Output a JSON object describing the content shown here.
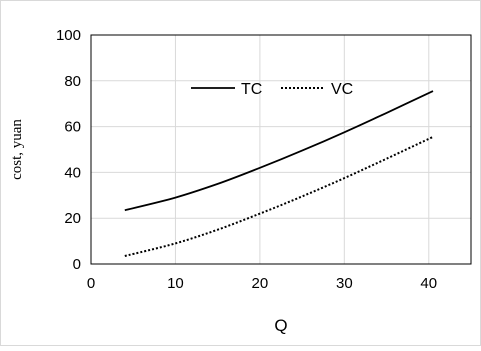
{
  "chart_data": {
    "type": "line",
    "title": "",
    "xlabel": "Q",
    "ylabel": "cost, yuan",
    "xlim": [
      0,
      45
    ],
    "ylim": [
      0,
      100
    ],
    "xticks": [
      0,
      10,
      20,
      30,
      40
    ],
    "yticks": [
      0,
      20,
      40,
      60,
      80,
      100
    ],
    "grid": true,
    "legend_position": "top-center",
    "series": [
      {
        "name": "TC",
        "style": "solid",
        "color": "#000000",
        "points": [
          [
            4,
            23.5
          ],
          [
            10,
            29
          ],
          [
            15,
            35
          ],
          [
            20,
            42
          ],
          [
            25,
            49.5
          ],
          [
            30,
            57.5
          ],
          [
            35,
            66
          ],
          [
            40.5,
            75.5
          ]
        ]
      },
      {
        "name": "VC",
        "style": "dotted",
        "color": "#000000",
        "points": [
          [
            4,
            3.5
          ],
          [
            10,
            9
          ],
          [
            15,
            15
          ],
          [
            20,
            22
          ],
          [
            25,
            29.5
          ],
          [
            30,
            37.5
          ],
          [
            35,
            46
          ],
          [
            40.5,
            55.5
          ]
        ]
      }
    ]
  }
}
